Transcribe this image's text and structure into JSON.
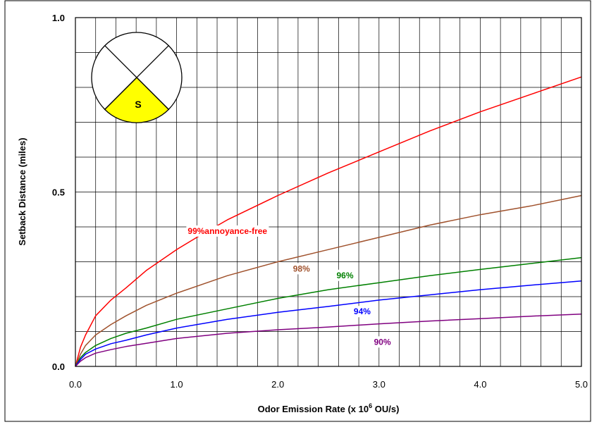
{
  "chart_data": {
    "type": "line",
    "xlabel": "Odor Emission Rate (x 10",
    "xlabel_sup": "6",
    "xlabel_tail": " OU/s)",
    "ylabel": "Setback Distance (miles)",
    "xlim": [
      0,
      5
    ],
    "ylim": [
      0,
      1
    ],
    "x_ticks": [
      "0.0",
      "1.0",
      "2.0",
      "3.0",
      "4.0",
      "5.0"
    ],
    "y_ticks": [
      "0.0",
      "0.5",
      "1.0"
    ],
    "grid": true,
    "series": [
      {
        "name": "99%annoyance-free",
        "color": "#ff0000",
        "x": [
          0,
          0.05,
          0.1,
          0.2,
          0.35,
          0.5,
          0.7,
          1.0,
          1.2,
          1.5,
          2.0,
          2.5,
          3.0,
          3.5,
          4.0,
          4.5,
          5.0
        ],
        "y": [
          0,
          0.055,
          0.09,
          0.145,
          0.19,
          0.225,
          0.275,
          0.335,
          0.37,
          0.42,
          0.49,
          0.555,
          0.615,
          0.675,
          0.73,
          0.78,
          0.83
        ]
      },
      {
        "name": "98%",
        "color": "#a0522d",
        "x": [
          0,
          0.05,
          0.1,
          0.2,
          0.35,
          0.5,
          0.7,
          1.0,
          1.5,
          2.0,
          2.5,
          3.0,
          3.5,
          4.0,
          4.5,
          5.0
        ],
        "y": [
          0,
          0.035,
          0.06,
          0.09,
          0.12,
          0.145,
          0.175,
          0.21,
          0.26,
          0.3,
          0.335,
          0.37,
          0.405,
          0.435,
          0.46,
          0.49
        ]
      },
      {
        "name": "96%",
        "color": "#008000",
        "x": [
          0,
          0.05,
          0.1,
          0.2,
          0.35,
          0.5,
          0.7,
          1.0,
          1.5,
          2.0,
          2.5,
          3.0,
          3.5,
          4.0,
          4.5,
          5.0
        ],
        "y": [
          0,
          0.025,
          0.04,
          0.06,
          0.08,
          0.095,
          0.11,
          0.135,
          0.165,
          0.195,
          0.22,
          0.24,
          0.26,
          0.278,
          0.295,
          0.312
        ]
      },
      {
        "name": "94%",
        "color": "#0000ff",
        "x": [
          0,
          0.05,
          0.1,
          0.2,
          0.35,
          0.5,
          0.7,
          1.0,
          1.5,
          2.0,
          2.5,
          3.0,
          3.5,
          4.0,
          4.5,
          5.0
        ],
        "y": [
          0,
          0.02,
          0.035,
          0.05,
          0.065,
          0.075,
          0.09,
          0.11,
          0.135,
          0.155,
          0.172,
          0.19,
          0.205,
          0.22,
          0.233,
          0.245
        ]
      },
      {
        "name": "90%",
        "color": "#800080",
        "x": [
          0,
          0.05,
          0.1,
          0.2,
          0.35,
          0.5,
          0.7,
          1.0,
          1.5,
          2.0,
          2.5,
          3.0,
          3.5,
          4.0,
          4.5,
          5.0
        ],
        "y": [
          0,
          0.015,
          0.025,
          0.038,
          0.048,
          0.057,
          0.066,
          0.08,
          0.095,
          0.105,
          0.113,
          0.122,
          0.13,
          0.137,
          0.144,
          0.15
        ]
      }
    ],
    "inset": {
      "quadrant_label": "S",
      "highlight_color": "#ffff00"
    }
  }
}
